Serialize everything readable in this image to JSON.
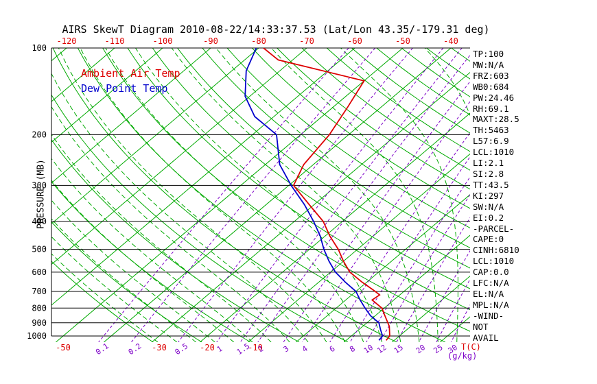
{
  "title": "AIRS SkewT Diagram 2010-08-22/14:33:37.53 (Lat/Lon 43.35/-179.31 deg)",
  "legend": {
    "air_temp": "Ambient Air Temp",
    "dew_point": "Dew Point Temp"
  },
  "colors": {
    "isotherm": "#00aa00",
    "dry_adiabat": "#00aa00",
    "moist_adiabat": "#00aa00",
    "mixing_ratio": "#7d00c8",
    "temperature": "#dd0000",
    "dewpoint": "#0000cc",
    "axis": "#000000",
    "top_tick": "#dd0000",
    "bottom_temp_tick": "#dd0000"
  },
  "axes": {
    "pressure_label": "PRESSURE (MB)",
    "pressure_ticks": [
      100,
      200,
      300,
      400,
      500,
      600,
      700,
      800,
      900,
      1000
    ],
    "top_temp_ticks": [
      -120,
      -110,
      -100,
      -90,
      -80,
      -70,
      -60,
      -50,
      -40
    ],
    "bottom_temp_ticks": [
      -50,
      -30,
      -20,
      -10
    ],
    "temp_unit_label": "T(C)",
    "mixing_unit_label": "(g/kg)",
    "mixing_ratio_labels": [
      0.1,
      0.2,
      0.5,
      1,
      1.5,
      2,
      3,
      4,
      6,
      8,
      10,
      12,
      15,
      20,
      25,
      30
    ]
  },
  "stats": [
    "TP:100",
    "MW:N/A",
    "FRZ:603",
    "WB0:684",
    "PW:24.46",
    "RH:69.1",
    "MAXT:28.5",
    "TH:5463",
    "L57:6.9",
    "LCL:1010",
    "LI:2.1",
    "SI:2.8",
    "TT:43.5",
    "KI:297",
    "SW:N/A",
    "EI:0.2",
    "-PARCEL-",
    "CAPE:0",
    "CINH:6810",
    "LCL:1010",
    "CAP:0.0",
    "LFC:N/A",
    "EL:N/A",
    "MPL:N/A",
    "-WIND-",
    "NOT",
    "AVAIL"
  ],
  "chart_data": {
    "type": "line",
    "variant": "skew-t-log-p",
    "title": "AIRS SkewT Diagram 2010-08-22/14:33:37.53 (Lat/Lon 43.35/-179.31 deg)",
    "ylabel": "PRESSURE (MB)",
    "xlabel": "T(C)",
    "pressure_axis": {
      "scale": "log",
      "range": [
        100,
        1050
      ],
      "ticks": [
        100,
        200,
        300,
        400,
        500,
        600,
        700,
        800,
        900,
        1000
      ]
    },
    "temperature_axis": {
      "unit": "C",
      "top_ticks": [
        -120,
        -110,
        -100,
        -90,
        -80,
        -70,
        -60,
        -50,
        -40
      ],
      "bottom_ticks": [
        -50,
        -30,
        -20,
        -10
      ]
    },
    "isotherms_C": {
      "min": -120,
      "max": 30,
      "step": 10
    },
    "dry_adiabats_K": {
      "min": 240,
      "max": 460,
      "step": 10
    },
    "moist_adiabats_C": {
      "min": -32,
      "max": 36,
      "step": 4
    },
    "mixing_ratios_g_kg": [
      0.1,
      0.2,
      0.5,
      1,
      1.5,
      2,
      3,
      4,
      6,
      8,
      10,
      12,
      15,
      20,
      25,
      30
    ],
    "series": [
      {
        "name": "Ambient Air Temp",
        "color": "#dd0000",
        "points_p_T": [
          [
            100,
            -79
          ],
          [
            110,
            -73
          ],
          [
            130,
            -50
          ],
          [
            160,
            -47
          ],
          [
            200,
            -44
          ],
          [
            254,
            -42
          ],
          [
            300,
            -39
          ],
          [
            350,
            -31
          ],
          [
            400,
            -24
          ],
          [
            450,
            -19
          ],
          [
            500,
            -14
          ],
          [
            550,
            -10
          ],
          [
            600,
            -6
          ],
          [
            650,
            -1
          ],
          [
            700,
            4
          ],
          [
            720,
            5.8
          ],
          [
            750,
            5.5
          ],
          [
            800,
            9.5
          ],
          [
            850,
            12
          ],
          [
            925,
            15.5
          ],
          [
            1000,
            18
          ],
          [
            1035,
            18.3
          ]
        ]
      },
      {
        "name": "Dew Point Temp",
        "color": "#0000cc",
        "points_p_T": [
          [
            100,
            -80.5
          ],
          [
            120,
            -77
          ],
          [
            147,
            -71
          ],
          [
            173,
            -64
          ],
          [
            200,
            -55
          ],
          [
            254,
            -47
          ],
          [
            300,
            -39.5
          ],
          [
            350,
            -32
          ],
          [
            400,
            -26
          ],
          [
            450,
            -21
          ],
          [
            500,
            -17
          ],
          [
            550,
            -13
          ],
          [
            600,
            -9
          ],
          [
            650,
            -4.5
          ],
          [
            700,
            0
          ],
          [
            750,
            3
          ],
          [
            800,
            6
          ],
          [
            850,
            9
          ],
          [
            900,
            12.5
          ],
          [
            950,
            14.5
          ],
          [
            1000,
            16.5
          ],
          [
            1035,
            16.8
          ]
        ]
      }
    ]
  }
}
